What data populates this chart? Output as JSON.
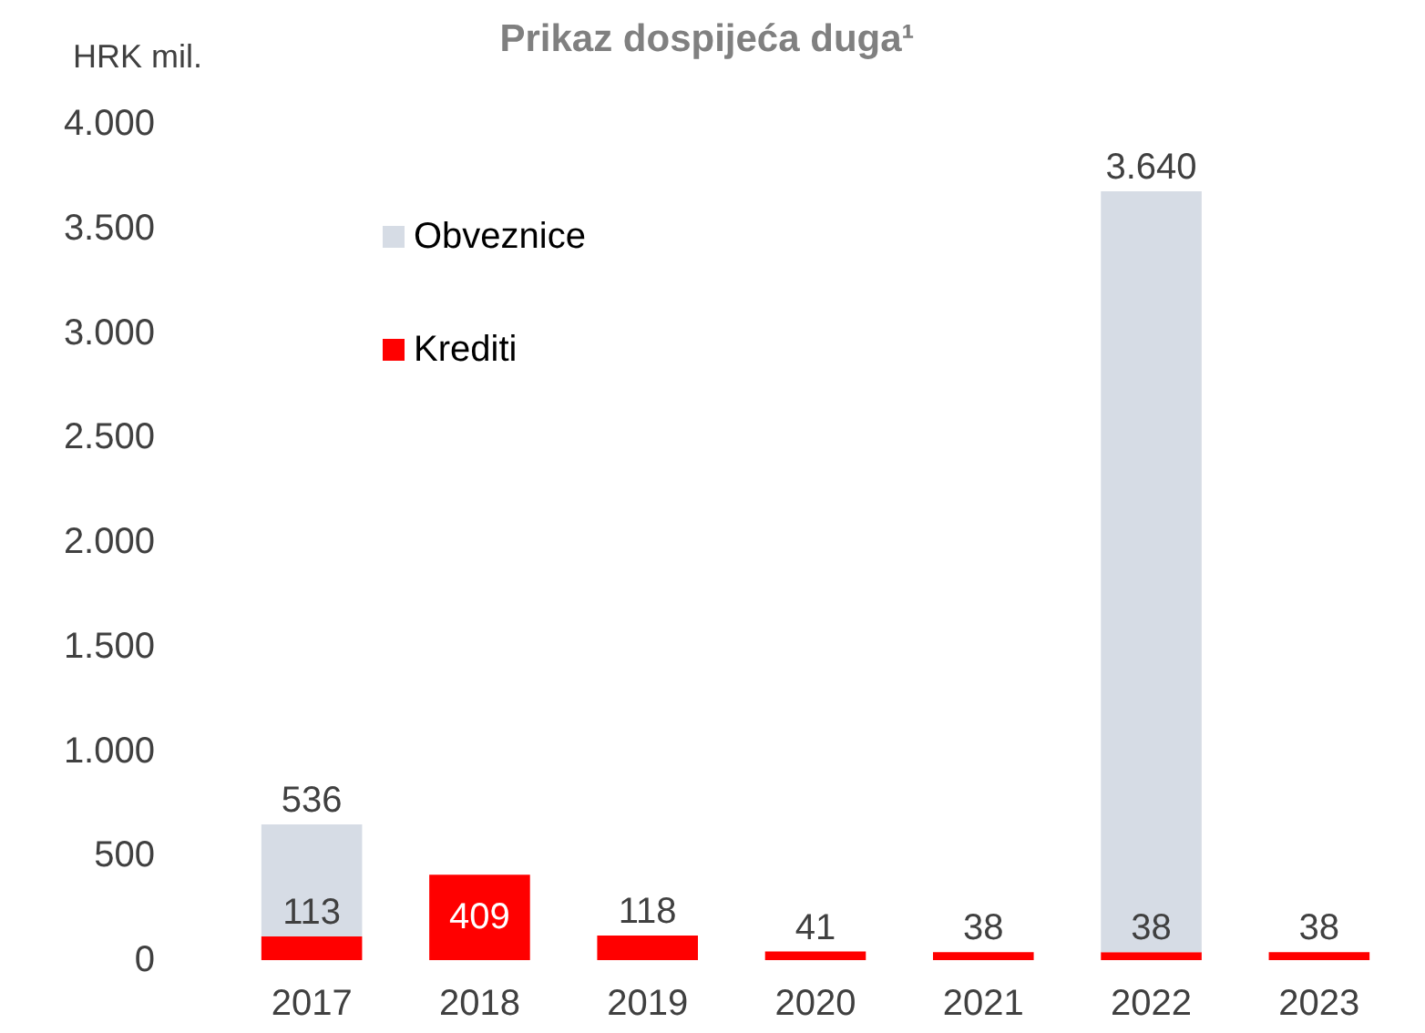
{
  "chart_data": {
    "type": "bar",
    "title": "Prikaz dospijeća duga¹",
    "ylabel": "HRK mil.",
    "stacked": true,
    "categories": [
      "2017",
      "2018",
      "2019",
      "2020",
      "2021",
      "2022",
      "2023"
    ],
    "series": [
      {
        "name": "Krediti",
        "color": "#ff0000",
        "values": [
          113,
          409,
          118,
          41,
          38,
          38,
          38
        ],
        "value_labels": [
          "113",
          "409",
          "118",
          "41",
          "38",
          "38",
          "38"
        ]
      },
      {
        "name": "Obveznice",
        "color": "#d6dce5",
        "values": [
          536,
          null,
          null,
          null,
          null,
          3640,
          null
        ],
        "value_labels": [
          "536",
          null,
          null,
          null,
          null,
          "3.640",
          null
        ]
      }
    ],
    "ylim": [
      0,
      4000
    ],
    "yticks": [
      {
        "value": 0,
        "label": "0"
      },
      {
        "value": 500,
        "label": "500"
      },
      {
        "value": 1000,
        "label": "1.000"
      },
      {
        "value": 1500,
        "label": "1.500"
      },
      {
        "value": 2000,
        "label": "2.000"
      },
      {
        "value": 2500,
        "label": "2.500"
      },
      {
        "value": 3000,
        "label": "3.000"
      },
      {
        "value": 3500,
        "label": "3.500"
      },
      {
        "value": 4000,
        "label": "4.000"
      }
    ],
    "grid": false,
    "legend": "top left"
  }
}
